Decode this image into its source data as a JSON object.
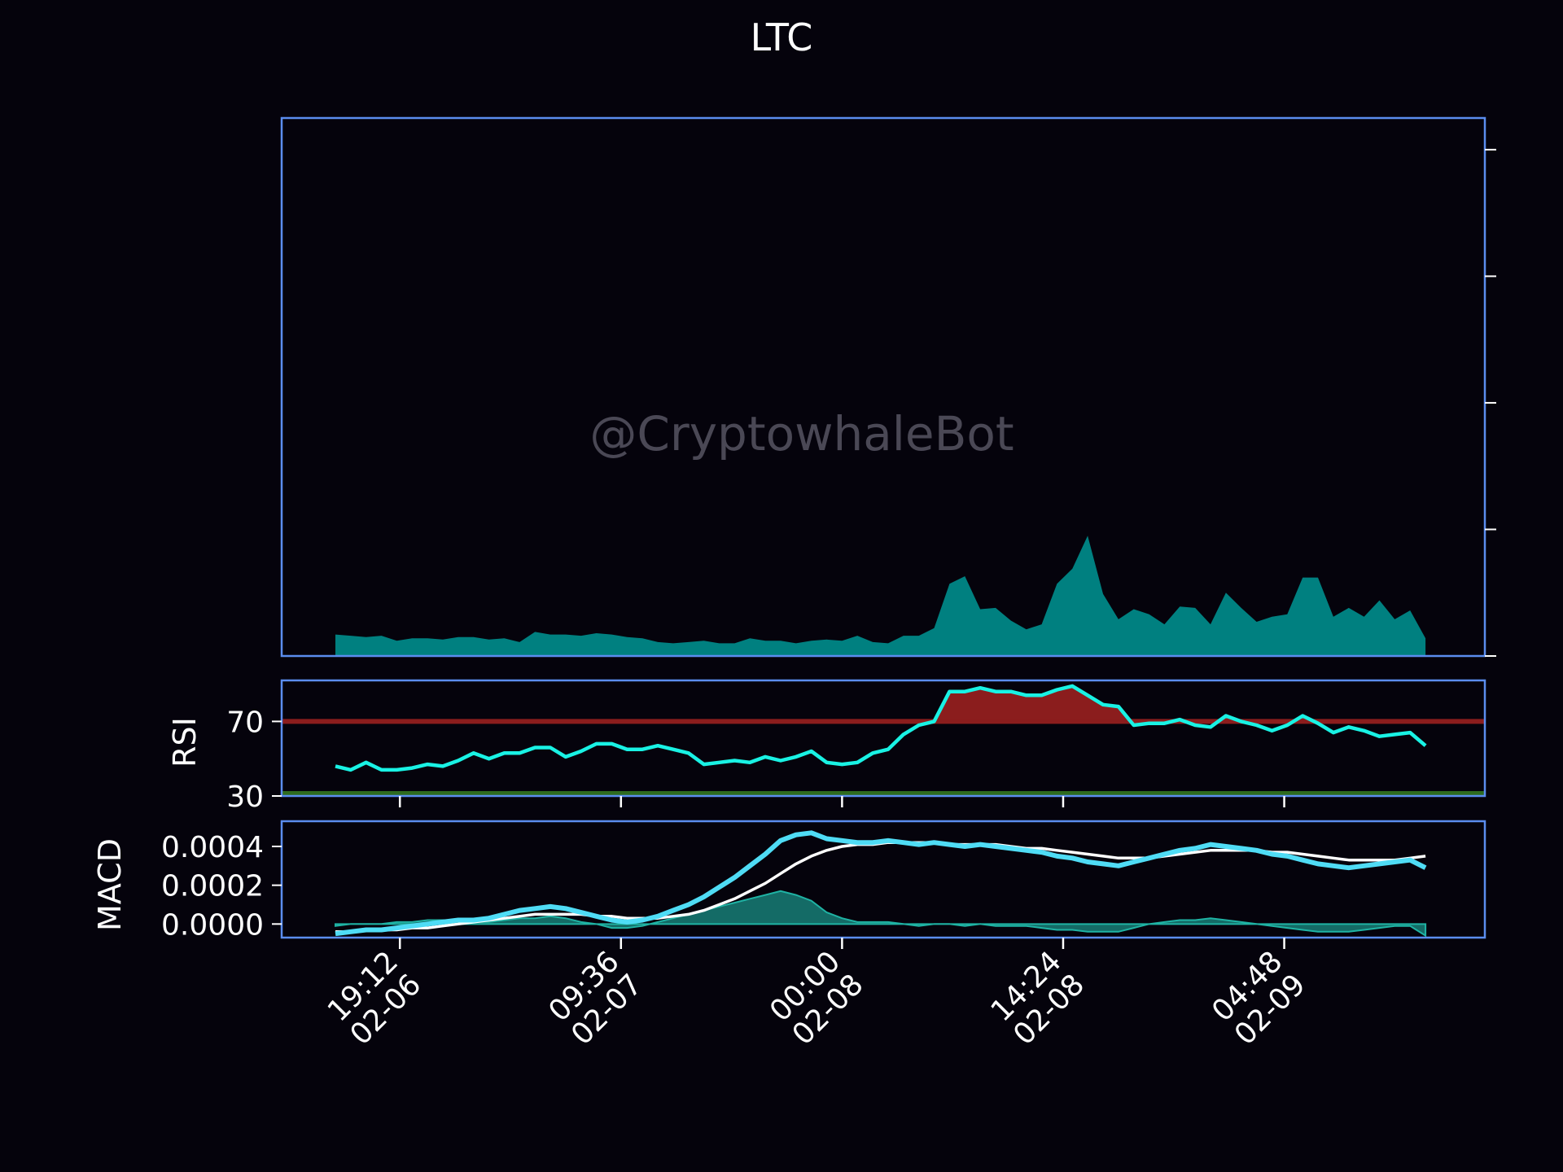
{
  "watermark": "@CryptowhaleBot",
  "colors": {
    "background": "#05030c",
    "frame": "#5b8def",
    "volume_fill": "#008080",
    "rsi_line": "#19f2e4",
    "rsi_overbought_line": "#8b1d1d",
    "rsi_oversold_line": "#2e6b1f",
    "rsi_overbought_fill": "#8b1d1d",
    "macd_line": "#4fdcf5",
    "signal_line": "#ffffff",
    "hist_fill": "#1a8f84",
    "text": "#ffffff",
    "watermark": "#4a4855"
  },
  "chart_data": [
    {
      "type": "area",
      "panel": "volume",
      "title": "LTC",
      "x_start": "2024-02-06 15:00",
      "step_hours": 1,
      "values": [
        0.17,
        0.16,
        0.15,
        0.16,
        0.12,
        0.14,
        0.14,
        0.13,
        0.15,
        0.15,
        0.13,
        0.14,
        0.11,
        0.19,
        0.17,
        0.17,
        0.16,
        0.18,
        0.17,
        0.15,
        0.14,
        0.11,
        0.1,
        0.11,
        0.12,
        0.1,
        0.1,
        0.14,
        0.12,
        0.12,
        0.1,
        0.12,
        0.13,
        0.12,
        0.16,
        0.11,
        0.1,
        0.16,
        0.16,
        0.22,
        0.57,
        0.63,
        0.37,
        0.38,
        0.28,
        0.21,
        0.25,
        0.57,
        0.69,
        0.95,
        0.49,
        0.29,
        0.37,
        0.33,
        0.25,
        0.39,
        0.38,
        0.25,
        0.5,
        0.38,
        0.27,
        0.31,
        0.33,
        0.62,
        0.62,
        0.31,
        0.38,
        0.31,
        0.44,
        0.29,
        0.36,
        0.14
      ],
      "ylim": [
        0,
        4.25
      ]
    },
    {
      "type": "line",
      "panel": "rsi",
      "ylabel": "RSI",
      "ylim": [
        30,
        92
      ],
      "yticks": [
        "30",
        "70"
      ],
      "thresholds": {
        "overbought": 70,
        "oversold": 30
      },
      "x_start": "2024-02-06 15:00",
      "step_hours": 1,
      "values": [
        46,
        44,
        48,
        44,
        44,
        45,
        47,
        46,
        49,
        53,
        50,
        53,
        53,
        56,
        56,
        51,
        54,
        58,
        58,
        55,
        55,
        57,
        55,
        53,
        47,
        48,
        49,
        48,
        51,
        49,
        51,
        54,
        48,
        47,
        48,
        53,
        55,
        63,
        68,
        70,
        86,
        86,
        88,
        86,
        86,
        84,
        84,
        87,
        89,
        84,
        79,
        78,
        68,
        69,
        69,
        71,
        68,
        67,
        73,
        70,
        68,
        65,
        68,
        73,
        69,
        64,
        67,
        65,
        62,
        63,
        64,
        57
      ]
    },
    {
      "type": "line",
      "panel": "macd",
      "ylabel": "MACD",
      "ylim": [
        -7e-05,
        0.00053
      ],
      "yticks": [
        "0.0000",
        "0.0002",
        "0.0004"
      ],
      "x_start": "2024-02-06 15:00",
      "step_hours": 1,
      "series": [
        {
          "role": "macd",
          "values": [
            -5e-05,
            -4e-05,
            -3e-05,
            -3e-05,
            -2e-05,
            -1e-05,
            0.0,
            1e-05,
            2e-05,
            2e-05,
            3e-05,
            5e-05,
            7e-05,
            8e-05,
            9e-05,
            8e-05,
            6e-05,
            4e-05,
            2e-05,
            1e-05,
            2e-05,
            4e-05,
            7e-05,
            0.0001,
            0.00014,
            0.00019,
            0.00024,
            0.0003,
            0.00036,
            0.00043,
            0.00046,
            0.00047,
            0.00044,
            0.00043,
            0.00042,
            0.00042,
            0.00043,
            0.00042,
            0.00041,
            0.00042,
            0.00041,
            0.0004,
            0.00041,
            0.0004,
            0.00039,
            0.00038,
            0.00037,
            0.00035,
            0.00034,
            0.00032,
            0.00031,
            0.0003,
            0.00032,
            0.00034,
            0.00036,
            0.00038,
            0.00039,
            0.00041,
            0.0004,
            0.00039,
            0.00038,
            0.00036,
            0.00035,
            0.00033,
            0.00031,
            0.0003,
            0.00029,
            0.0003,
            0.00031,
            0.00032,
            0.00033,
            0.00029
          ]
        },
        {
          "role": "signal",
          "values": [
            -4e-05,
            -4e-05,
            -3e-05,
            -3e-05,
            -3e-05,
            -2e-05,
            -2e-05,
            -1e-05,
            0.0,
            1e-05,
            2e-05,
            3e-05,
            4e-05,
            5e-05,
            5e-05,
            5e-05,
            5e-05,
            4e-05,
            4e-05,
            3e-05,
            3e-05,
            3e-05,
            4e-05,
            5e-05,
            7e-05,
            0.0001,
            0.00013,
            0.00017,
            0.00021,
            0.00026,
            0.00031,
            0.00035,
            0.00038,
            0.0004,
            0.00041,
            0.00041,
            0.00042,
            0.00042,
            0.00042,
            0.00042,
            0.00041,
            0.00041,
            0.00041,
            0.00041,
            0.0004,
            0.00039,
            0.00039,
            0.00038,
            0.00037,
            0.00036,
            0.00035,
            0.00034,
            0.00034,
            0.00034,
            0.00035,
            0.00036,
            0.00037,
            0.00038,
            0.00038,
            0.00038,
            0.00038,
            0.00037,
            0.00037,
            0.00036,
            0.00035,
            0.00034,
            0.00033,
            0.00033,
            0.00033,
            0.00033,
            0.00034,
            0.00035
          ]
        }
      ]
    }
  ],
  "x_ticks": [
    {
      "time": "19:12",
      "date": "02-06",
      "hours_from_start": 4.2
    },
    {
      "time": "09:36",
      "date": "02-07",
      "hours_from_start": 18.6
    },
    {
      "time": "00:00",
      "date": "02-08",
      "hours_from_start": 33.0
    },
    {
      "time": "14:24",
      "date": "02-08",
      "hours_from_start": 47.4
    },
    {
      "time": "04:48",
      "date": "02-09",
      "hours_from_start": 61.8
    }
  ]
}
